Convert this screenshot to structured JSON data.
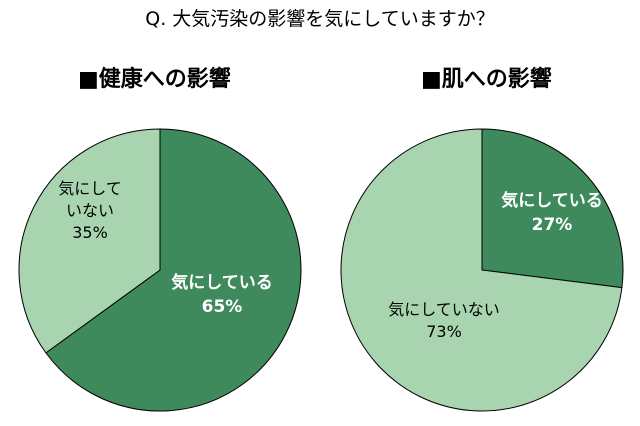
{
  "question": "Q. 大気汚染の影響を気にしていますか？",
  "colors": {
    "worried": "#3f8a5c",
    "not_worried": "#a8d5b0",
    "edge": "#000000",
    "dark_label": "#ffffff",
    "light_label": "#000000"
  },
  "chart_data": [
    {
      "type": "pie",
      "title": "■健康への影響",
      "start_angle": "12 o'clock",
      "direction": "clockwise",
      "slices": [
        {
          "label": "気にしている",
          "value": 65,
          "value_label": "65%",
          "label_lines": [
            "気にしている"
          ],
          "color_key": "worried",
          "bold": true
        },
        {
          "label": "気にしていない",
          "value": 35,
          "value_label": "35%",
          "label_lines": [
            "気にして",
            "いない"
          ],
          "color_key": "not_worried",
          "bold": false
        }
      ]
    },
    {
      "type": "pie",
      "title": "■肌への影響",
      "start_angle": "12 o'clock",
      "direction": "clockwise",
      "slices": [
        {
          "label": "気にしている",
          "value": 27,
          "value_label": "27%",
          "label_lines": [
            "気にしている"
          ],
          "color_key": "worried",
          "bold": true
        },
        {
          "label": "気にしていない",
          "value": 73,
          "value_label": "73%",
          "label_lines": [
            "気にしていない"
          ],
          "color_key": "not_worried",
          "bold": false
        }
      ]
    }
  ]
}
